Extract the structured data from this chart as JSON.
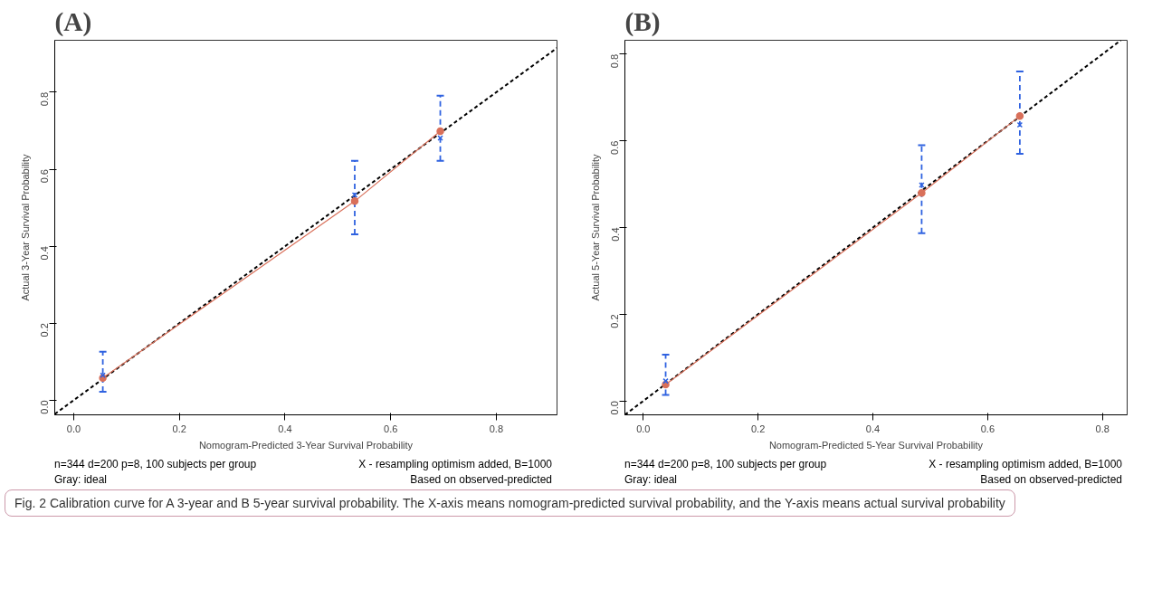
{
  "chart_data": [
    {
      "type": "line",
      "title": "(A)",
      "xlabel": "Nomogram-Predicted 3-Year Survival Probability",
      "ylabel": "Actual 3-Year Survival Probability",
      "xlim": [
        -0.036,
        0.915
      ],
      "ylim": [
        -0.038,
        0.935
      ],
      "xticks": [
        {
          "value": 0,
          "label": "0.0"
        },
        0.2,
        0.4,
        0.6,
        0.8
      ],
      "yticks": [
        {
          "value": 0,
          "label": "0.0"
        },
        0.2,
        0.4,
        0.6,
        0.8
      ],
      "grid": false,
      "series": [
        {
          "color": "#000000",
          "line_style": "dashed",
          "marker": "none",
          "x": [
            -0.036,
            0.915
          ],
          "values": [
            -0.036,
            0.915
          ]
        },
        {
          "color": "#d9705a",
          "line_style": "solid",
          "marker": "circle",
          "x": [
            0.055,
            0.532,
            0.694
          ],
          "values": [
            0.058,
            0.517,
            0.699
          ]
        },
        {
          "type": "scatter",
          "color": "#2f62e0",
          "marker": "cross",
          "x": [
            0.055,
            0.532,
            0.694
          ],
          "values": [
            0.065,
            0.533,
            0.681
          ],
          "errors": [
            [
              0.022,
              0.126
            ],
            [
              0.431,
              0.622
            ],
            [
              0.622,
              0.791
            ]
          ]
        }
      ],
      "annotations": [
        "n=344 d=200 p=8, 100 subjects per group",
        "Gray: ideal",
        "X - resampling optimism added, B=1000",
        "Based on observed-predicted",
        "Fig. 2  Calibration curve for A 3-year and B 5-year survival probability. The X-axis means nomogram-predicted survival probability, and the Y-axis means actual survival probability"
      ]
    },
    {
      "type": "line",
      "title": "(B)",
      "xlabel": "Nomogram-Predicted 5-Year Survival Probability",
      "ylabel": "Actual 5-Year Survival Probability",
      "xlim": [
        -0.032,
        0.843
      ],
      "ylim": [
        -0.032,
        0.832
      ],
      "xticks": [
        {
          "value": 0,
          "label": "0.0"
        },
        0.2,
        0.4,
        0.6,
        0.8
      ],
      "yticks": [
        {
          "value": 0,
          "label": "0.0"
        },
        0.2,
        0.4,
        0.6,
        0.8
      ],
      "grid": false,
      "series": [
        {
          "color": "#000000",
          "line_style": "dashed",
          "marker": "none",
          "x": [
            -0.032,
            0.832
          ],
          "values": [
            -0.032,
            0.832
          ]
        },
        {
          "color": "#d9705a",
          "line_style": "solid",
          "marker": "circle",
          "x": [
            0.039,
            0.485,
            0.656
          ],
          "values": [
            0.038,
            0.48,
            0.657
          ]
        },
        {
          "type": "scatter",
          "color": "#2f62e0",
          "marker": "cross",
          "x": [
            0.039,
            0.485,
            0.656
          ],
          "values": [
            0.046,
            0.498,
            0.637
          ],
          "errors": [
            [
              0.014,
              0.107
            ],
            [
              0.387,
              0.59
            ],
            [
              0.57,
              0.76
            ]
          ]
        }
      ],
      "annotations": [
        "n=344 d=200 p=8, 100 subjects per group",
        "Gray: ideal",
        "X - resampling optimism added, B=1000",
        "Based on observed-predicted"
      ]
    }
  ]
}
